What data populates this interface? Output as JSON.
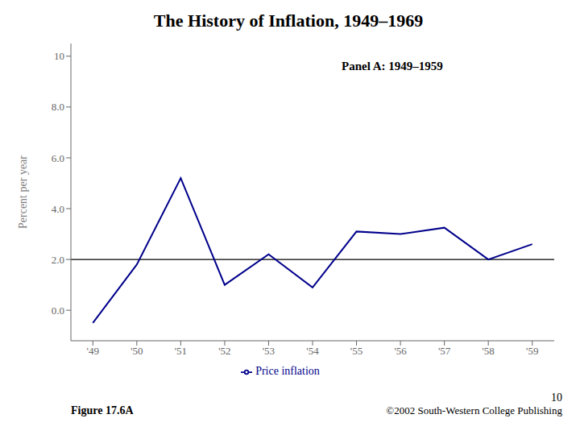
{
  "chart_data": {
    "type": "line",
    "title": "The History of Inflation, 1949–1969",
    "ylabel": "Percent per year",
    "x": [
      1949,
      1950,
      1951,
      1952,
      1953,
      1954,
      1955,
      1956,
      1957,
      1958,
      1959
    ],
    "series": [
      {
        "name": "Price inflation",
        "color": "#00008b",
        "values": [
          -0.5,
          1.8,
          5.2,
          1.0,
          2.2,
          0.9,
          3.1,
          3.0,
          3.25,
          2.0,
          2.6
        ]
      }
    ],
    "xlim": [
      1948.5,
      1959.5
    ],
    "xticks": [
      {
        "value": 1949,
        "label": "'49"
      },
      {
        "value": 1950,
        "label": "'50"
      },
      {
        "value": 1951,
        "label": "'51"
      },
      {
        "value": 1952,
        "label": "'52"
      },
      {
        "value": 1953,
        "label": "'53"
      },
      {
        "value": 1954,
        "label": "'54"
      },
      {
        "value": 1955,
        "label": "'55"
      },
      {
        "value": 1956,
        "label": "'56"
      },
      {
        "value": 1957,
        "label": "'57"
      },
      {
        "value": 1958,
        "label": "'58"
      },
      {
        "value": 1959,
        "label": "'59"
      }
    ],
    "ylim": [
      -1.2,
      10.5
    ],
    "yticks": [
      {
        "value": 0.0,
        "label": "0.0"
      },
      {
        "value": 2.0,
        "label": "2.0"
      },
      {
        "value": 4.0,
        "label": "4.0"
      },
      {
        "value": 6.0,
        "label": "6.0"
      },
      {
        "value": 8.0,
        "label": "8.0"
      },
      10
    ],
    "hlines": [
      {
        "value": 2.0,
        "color": "#000000"
      }
    ],
    "annotations": [
      "Panel A: 1949–1959",
      "Figure 17.6A",
      "10",
      "©2002 South-Western College Publishing"
    ],
    "legend": "bottom",
    "grid": false
  }
}
